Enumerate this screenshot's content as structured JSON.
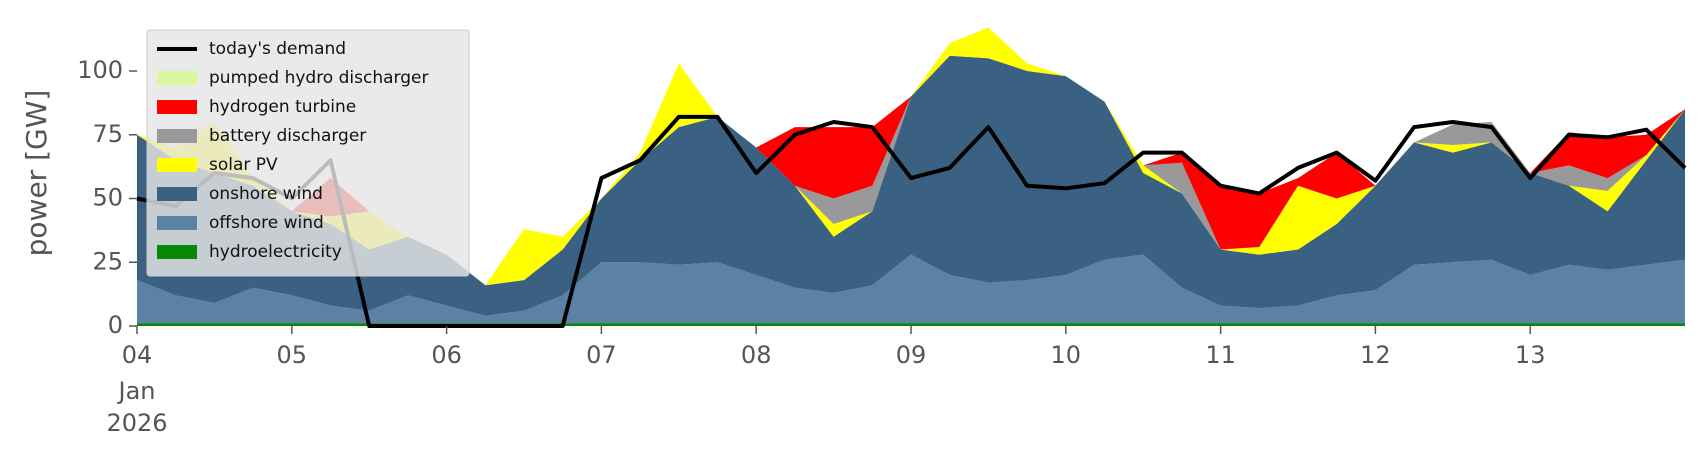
{
  "chart_data": {
    "type": "stacked_area",
    "ylabel": "power [GW]",
    "x_month": "Jan",
    "x_year": "2026",
    "xlim": [
      4,
      14
    ],
    "xticks": [
      {
        "value": 4,
        "label": "04"
      },
      {
        "value": 5,
        "label": "05"
      },
      {
        "value": 6,
        "label": "06"
      },
      {
        "value": 7,
        "label": "07"
      },
      {
        "value": 8,
        "label": "08"
      },
      {
        "value": 9,
        "label": "09"
      },
      {
        "value": 10,
        "label": "10"
      },
      {
        "value": 11,
        "label": "11"
      },
      {
        "value": 12,
        "label": "12"
      },
      {
        "value": 13,
        "label": "13"
      }
    ],
    "ylim": [
      0,
      120
    ],
    "yticks": [
      0,
      25,
      50,
      75,
      100
    ],
    "legend": "upper left",
    "x": [
      4,
      4.25,
      4.5,
      4.75,
      5,
      5.25,
      5.5,
      5.75,
      6,
      6.25,
      6.5,
      6.75,
      7,
      7.25,
      7.5,
      7.75,
      8,
      8.25,
      8.5,
      8.75,
      9,
      9.25,
      9.5,
      9.75,
      10,
      10.25,
      10.5,
      10.75,
      11,
      11.25,
      11.5,
      11.75,
      12,
      12.25,
      12.5,
      12.75,
      13,
      13.25,
      13.5,
      13.75,
      14
    ],
    "line": {
      "name": "today's demand",
      "color": "#000000",
      "values": [
        50,
        47,
        60,
        58,
        50,
        65,
        0,
        0,
        0,
        0,
        0,
        0,
        58,
        65,
        82,
        82,
        60,
        75,
        80,
        78,
        58,
        62,
        78,
        55,
        54,
        56,
        68,
        68,
        55,
        52,
        62,
        68,
        57,
        78,
        80,
        78,
        58,
        75,
        74,
        77,
        62
      ]
    },
    "series": [
      {
        "name": "pumped hydro discharger",
        "color": "#d9f7a1",
        "values": [
          0,
          0,
          0,
          0,
          0,
          0,
          0,
          0,
          0,
          0,
          0,
          0,
          0,
          0,
          0,
          0,
          0,
          0,
          0,
          0,
          0,
          0,
          0,
          0,
          0,
          0,
          0,
          0,
          0,
          0,
          0,
          0,
          0,
          0,
          0,
          0,
          0,
          0,
          0,
          0,
          0
        ]
      },
      {
        "name": "hydrogen turbine",
        "color": "#ff0000",
        "values": [
          0,
          0,
          0,
          0,
          0,
          15,
          0,
          0,
          0,
          0,
          0,
          0,
          0,
          0,
          0,
          0,
          0,
          23,
          28,
          23,
          0,
          0,
          0,
          0,
          0,
          0,
          0,
          4,
          25,
          21,
          3,
          18,
          0,
          0,
          0,
          0,
          0,
          13,
          16,
          8,
          0
        ]
      },
      {
        "name": "battery discharger",
        "color": "#999999",
        "values": [
          0,
          0,
          0,
          0,
          0,
          0,
          0,
          0,
          0,
          0,
          0,
          0,
          0,
          0,
          0,
          0,
          0,
          0,
          10,
          10,
          0,
          0,
          0,
          0,
          0,
          0,
          0,
          12,
          0,
          0,
          0,
          0,
          0,
          0,
          8,
          8,
          0,
          8,
          5,
          0,
          0
        ]
      },
      {
        "name": "solar PV",
        "color": "#ffff00",
        "values": [
          0,
          5,
          20,
          3,
          0,
          3,
          15,
          0,
          0,
          0,
          20,
          5,
          0,
          3,
          25,
          0,
          0,
          0,
          5,
          0,
          0,
          5,
          12,
          3,
          0,
          0,
          3,
          0,
          0,
          3,
          25,
          10,
          0,
          0,
          3,
          0,
          0,
          0,
          8,
          2,
          0
        ]
      },
      {
        "name": "onshore wind",
        "color": "#3b6182",
        "values": [
          57,
          53,
          51,
          40,
          33,
          32,
          24,
          23,
          20,
          12,
          12,
          18,
          25,
          40,
          54,
          57,
          50,
          40,
          22,
          29,
          62,
          86,
          88,
          82,
          78,
          62,
          32,
          37,
          22,
          21,
          22,
          28,
          41,
          48,
          43,
          46,
          40,
          31,
          23,
          41,
          59
        ]
      },
      {
        "name": "offshore wind",
        "color": "#5b82a5",
        "values": [
          17,
          11,
          8,
          14,
          11,
          7,
          5,
          11,
          7,
          3,
          5,
          11,
          24,
          24,
          23,
          24,
          19,
          14,
          12,
          15,
          27,
          19,
          16,
          17,
          19,
          25,
          27,
          14,
          7,
          6,
          7,
          11,
          13,
          23,
          24,
          25,
          19,
          23,
          21,
          23,
          25
        ]
      },
      {
        "name": "hydroelectricity",
        "color": "#088a08",
        "values": [
          1,
          1,
          1,
          1,
          1,
          1,
          1,
          1,
          1,
          1,
          1,
          1,
          1,
          1,
          1,
          1,
          1,
          1,
          1,
          1,
          1,
          1,
          1,
          1,
          1,
          1,
          1,
          1,
          1,
          1,
          1,
          1,
          1,
          1,
          1,
          1,
          1,
          1,
          1,
          1,
          1
        ]
      }
    ]
  }
}
